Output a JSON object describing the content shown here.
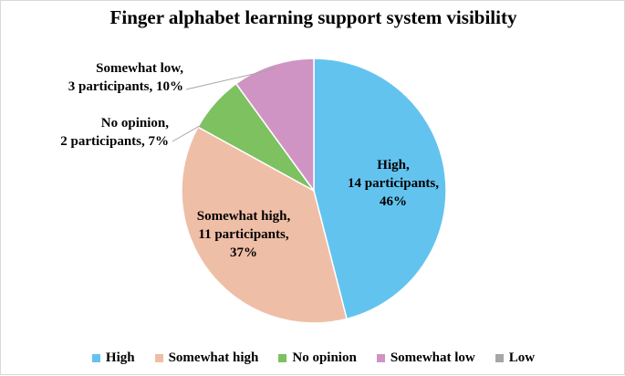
{
  "chart_data": {
    "type": "pie",
    "title": "Finger alphabet learning support system visibility",
    "legend_position": "bottom",
    "slices": [
      {
        "name": "High",
        "participants": 14,
        "percent": 46,
        "color": "#63c3ef",
        "label_lines": [
          "High,",
          "14 participants,",
          "46%"
        ]
      },
      {
        "name": "Somewhat high",
        "participants": 11,
        "percent": 37,
        "color": "#efbea6",
        "label_lines": [
          "Somewhat high,",
          "11 participants,",
          "37%"
        ]
      },
      {
        "name": "No opinion",
        "participants": 2,
        "percent": 7,
        "color": "#7dc160",
        "label_lines": [
          "No opinion,",
          "2 participants, 7%"
        ]
      },
      {
        "name": "Somewhat low",
        "participants": 3,
        "percent": 10,
        "color": "#cf94c4",
        "label_lines": [
          "Somewhat low,",
          "3 participants, 10%"
        ]
      },
      {
        "name": "Low",
        "participants": 0,
        "percent": 0,
        "color": "#a6a6a6",
        "label_lines": []
      }
    ]
  }
}
